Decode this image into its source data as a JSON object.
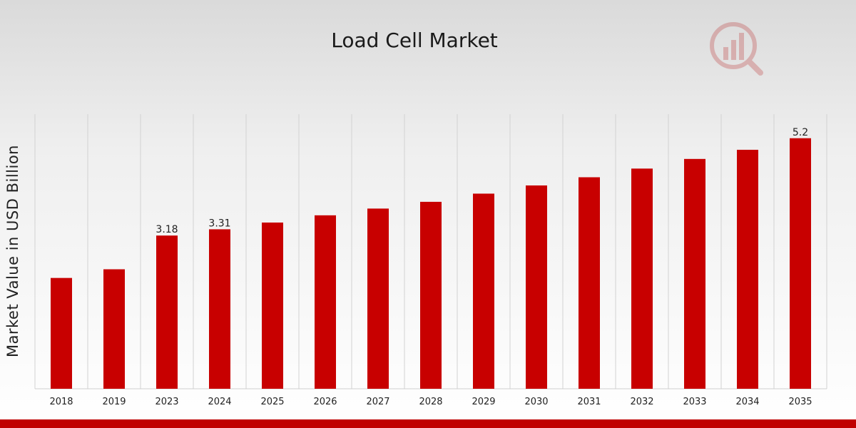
{
  "chart_data": {
    "type": "bar",
    "title": "Load Cell Market",
    "xlabel": "",
    "ylabel": "Market Value in USD Billion",
    "categories": [
      "2018",
      "2019",
      "2023",
      "2024",
      "2025",
      "2026",
      "2027",
      "2028",
      "2029",
      "2030",
      "2031",
      "2032",
      "2033",
      "2034",
      "2035"
    ],
    "values": [
      2.3,
      2.48,
      3.18,
      3.31,
      3.45,
      3.6,
      3.74,
      3.88,
      4.05,
      4.22,
      4.39,
      4.57,
      4.77,
      4.96,
      5.2
    ],
    "data_labels": [
      "",
      "",
      "3.18",
      "3.31",
      "",
      "",
      "",
      "",
      "",
      "",
      "",
      "",
      "",
      "",
      "5.2"
    ],
    "ylim": [
      0,
      5.7
    ],
    "grid": "vertical",
    "legend": "none",
    "colors": {
      "bar": "#c80000",
      "grid": "#d2d2d2",
      "accent": "#c00000"
    }
  },
  "logo": {
    "icon": "market-research-logo-icon"
  }
}
